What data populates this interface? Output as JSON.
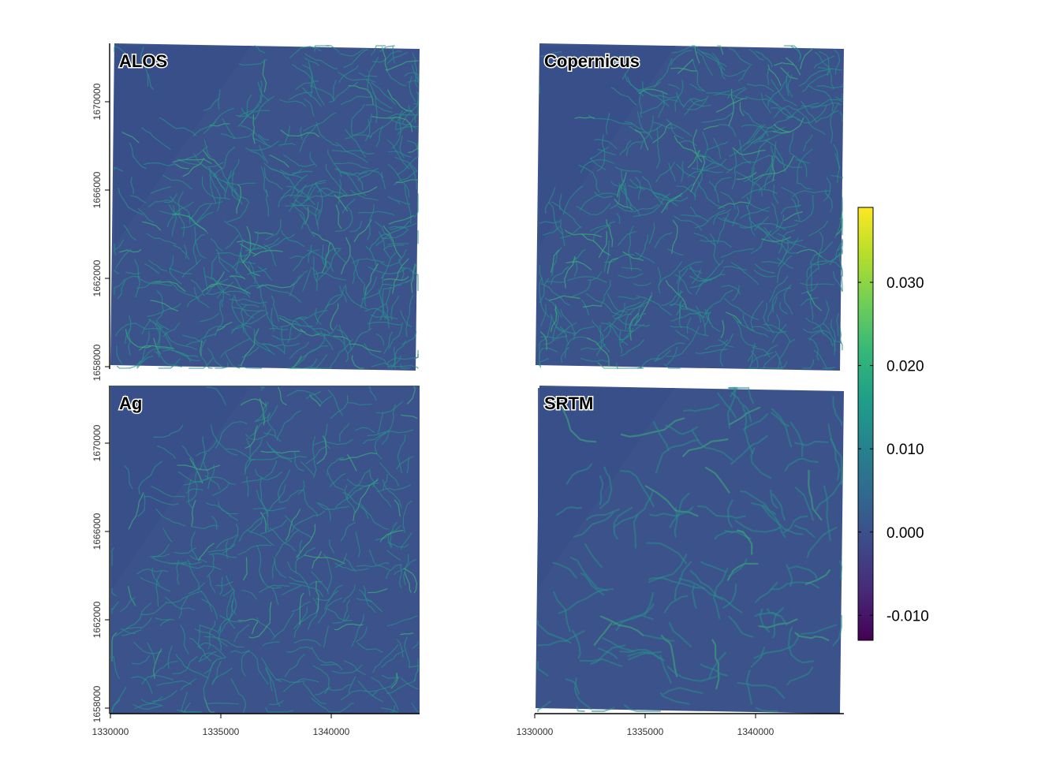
{
  "panels": [
    {
      "label": "ALOS",
      "texture": "dense",
      "seed": 11
    },
    {
      "label": "Copernicus",
      "texture": "dense",
      "seed": 23
    },
    {
      "label": "Ag",
      "texture": "medium",
      "seed": 37
    },
    {
      "label": "SRTM",
      "texture": "smooth",
      "seed": 53
    }
  ],
  "axes": {
    "x_ticks": [
      "1330000",
      "1335000",
      "1340000"
    ],
    "y_ticks": [
      "1658000",
      "1662000",
      "1666000",
      "1670000"
    ]
  },
  "colorbar": {
    "min": -0.013,
    "max": 0.039,
    "ticks": [
      "0.030",
      "0.020",
      "0.010",
      "0.000",
      "-0.010"
    ],
    "tick_values": [
      0.03,
      0.02,
      0.01,
      0.0,
      -0.01
    ],
    "palette": [
      "#440154",
      "#482878",
      "#3e4989",
      "#31688e",
      "#26828e",
      "#1f9e89",
      "#35b779",
      "#6ece58",
      "#b5de2b",
      "#fde725"
    ]
  },
  "colors": {
    "background_base": "#3b528b",
    "flat_zone": "#3a4f8a",
    "channel": "#2a8d8c",
    "channel_bright": "#3cb07a"
  }
}
